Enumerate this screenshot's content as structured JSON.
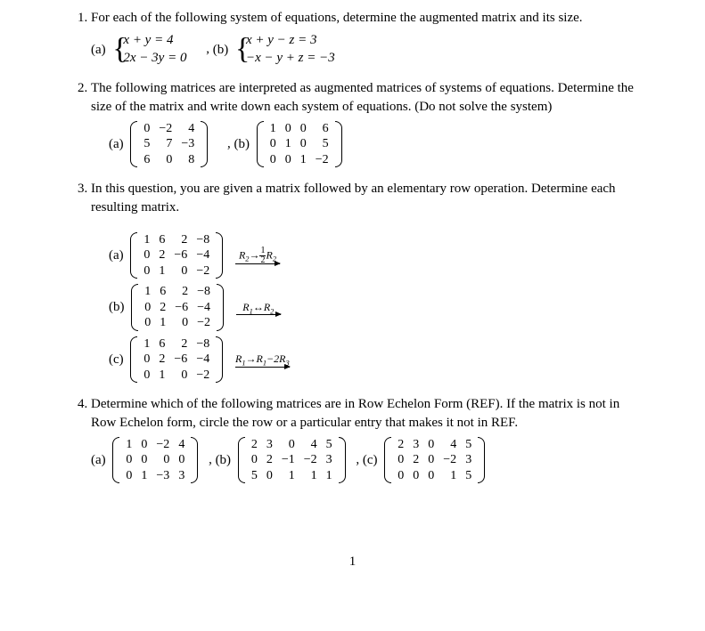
{
  "q1": {
    "text": "For each of the following system of equations, determine the augmented matrix and its size.",
    "a": {
      "label": "(a)",
      "eq1": "x + y = 4",
      "eq2": "2x − 3y = 0"
    },
    "comma": ",",
    "b": {
      "label": "(b)",
      "eq1": "x + y − z = 3",
      "eq2": "−x − y + z = −3"
    }
  },
  "q2": {
    "text": "The following matrices are interpreted as augmented matrices of systems of equations. Determine the size of the matrix and write down each system of equations. (Do not solve the system)",
    "a": {
      "label": "(a)",
      "rows": [
        [
          "0",
          "−2",
          "4"
        ],
        [
          "5",
          "7",
          "−3"
        ],
        [
          "6",
          "0",
          "8"
        ]
      ]
    },
    "comma": ",",
    "b": {
      "label": "(b)",
      "rows": [
        [
          "1",
          "0",
          "0",
          "6"
        ],
        [
          "0",
          "1",
          "0",
          "5"
        ],
        [
          "0",
          "0",
          "1",
          "−2"
        ]
      ]
    }
  },
  "q3": {
    "text": "In this question, you are given a matrix followed by an elementary row operation. Determine each resulting matrix.",
    "mat": [
      [
        "1",
        "6",
        "2",
        "−8"
      ],
      [
        "0",
        "2",
        "−6",
        "−4"
      ],
      [
        "0",
        "1",
        "0",
        "−2"
      ]
    ],
    "a": {
      "label": "(a)",
      "op_html": "R<sub>2</sub>→<span class='frac'><span class='n'>1</span><span class='d'>2</span></span>R<sub>2</sub>"
    },
    "b": {
      "label": "(b)",
      "op_html": "R<sub>1</sub>↔R<sub>2</sub>"
    },
    "c": {
      "label": "(c)",
      "op_html": "R<sub>1</sub>→R<sub>1</sub>−2R<sub>3</sub>"
    }
  },
  "q4": {
    "text": "Determine which of the following matrices are in Row Echelon Form (REF). If the matrix is not in Row Echelon form, circle the row or a particular entry that makes it not in REF.",
    "a": {
      "label": "(a)",
      "rows": [
        [
          "1",
          "0",
          "−2",
          "4"
        ],
        [
          "0",
          "0",
          "0",
          "0"
        ],
        [
          "0",
          "1",
          "−3",
          "3"
        ]
      ]
    },
    "comma": ",",
    "b": {
      "label": "(b)",
      "rows": [
        [
          "2",
          "3",
          "0",
          "4",
          "5"
        ],
        [
          "0",
          "2",
          "−1",
          "−2",
          "3"
        ],
        [
          "5",
          "0",
          "1",
          "1",
          "1"
        ]
      ]
    },
    "c": {
      "label": "(c)",
      "rows": [
        [
          "2",
          "3",
          "0",
          "4",
          "5"
        ],
        [
          "0",
          "2",
          "0",
          "−2",
          "3"
        ],
        [
          "0",
          "0",
          "0",
          "1",
          "5"
        ]
      ]
    }
  },
  "pagenum": "1"
}
